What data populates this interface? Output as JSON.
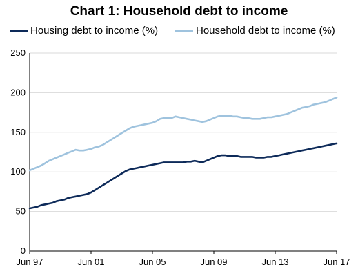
{
  "chart_data": {
    "type": "line",
    "title": "Chart 1: Household debt to income",
    "xlabel": "",
    "ylabel": "",
    "x_tick_labels": [
      "Jun 97",
      "Jun 01",
      "Jun 05",
      "Jun 09",
      "Jun 13",
      "Jun 17"
    ],
    "y_tick_labels": [
      "0",
      "50",
      "100",
      "150",
      "200",
      "250"
    ],
    "ylim": [
      0,
      250
    ],
    "xlim": [
      1997.5,
      2017.5
    ],
    "grid": "horizontal",
    "legend_position": "top",
    "series": [
      {
        "name": "Housing debt to income (%)",
        "color": "#0d2a59",
        "x": [
          1997.5,
          1997.75,
          1998.0,
          1998.25,
          1998.5,
          1998.75,
          1999.0,
          1999.25,
          1999.5,
          1999.75,
          2000.0,
          2000.25,
          2000.5,
          2000.75,
          2001.0,
          2001.25,
          2001.5,
          2001.75,
          2002.0,
          2002.25,
          2002.5,
          2002.75,
          2003.0,
          2003.25,
          2003.5,
          2003.75,
          2004.0,
          2004.25,
          2004.5,
          2004.75,
          2005.0,
          2005.25,
          2005.5,
          2005.75,
          2006.0,
          2006.25,
          2006.5,
          2006.75,
          2007.0,
          2007.25,
          2007.5,
          2007.75,
          2008.0,
          2008.25,
          2008.5,
          2008.75,
          2009.0,
          2009.25,
          2009.5,
          2009.75,
          2010.0,
          2010.25,
          2010.5,
          2010.75,
          2011.0,
          2011.25,
          2011.5,
          2011.75,
          2012.0,
          2012.25,
          2012.5,
          2012.75,
          2013.0,
          2013.25,
          2013.5,
          2013.75,
          2014.0,
          2014.25,
          2014.5,
          2014.75,
          2015.0,
          2015.25,
          2015.5,
          2015.75,
          2016.0,
          2016.25,
          2016.5,
          2016.75,
          2017.0,
          2017.25,
          2017.5
        ],
        "values": [
          54,
          55,
          56,
          58,
          59,
          60,
          61,
          63,
          64,
          65,
          67,
          68,
          69,
          70,
          71,
          72,
          74,
          77,
          80,
          83,
          86,
          89,
          92,
          95,
          98,
          101,
          103,
          104,
          105,
          106,
          107,
          108,
          109,
          110,
          111,
          112,
          112,
          112,
          112,
          112,
          112,
          113,
          113,
          114,
          113,
          112,
          114,
          116,
          118,
          120,
          121,
          121,
          120,
          120,
          120,
          119,
          119,
          119,
          119,
          118,
          118,
          118,
          119,
          119,
          120,
          121,
          122,
          123,
          124,
          125,
          126,
          127,
          128,
          129,
          130,
          131,
          132,
          133,
          134,
          135,
          136
        ]
      },
      {
        "name": "Household debt to income (%)",
        "color": "#9fc3de",
        "x": [
          1997.5,
          1997.75,
          1998.0,
          1998.25,
          1998.5,
          1998.75,
          1999.0,
          1999.25,
          1999.5,
          1999.75,
          2000.0,
          2000.25,
          2000.5,
          2000.75,
          2001.0,
          2001.25,
          2001.5,
          2001.75,
          2002.0,
          2002.25,
          2002.5,
          2002.75,
          2003.0,
          2003.25,
          2003.5,
          2003.75,
          2004.0,
          2004.25,
          2004.5,
          2004.75,
          2005.0,
          2005.25,
          2005.5,
          2005.75,
          2006.0,
          2006.25,
          2006.5,
          2006.75,
          2007.0,
          2007.25,
          2007.5,
          2007.75,
          2008.0,
          2008.25,
          2008.5,
          2008.75,
          2009.0,
          2009.25,
          2009.5,
          2009.75,
          2010.0,
          2010.25,
          2010.5,
          2010.75,
          2011.0,
          2011.25,
          2011.5,
          2011.75,
          2012.0,
          2012.25,
          2012.5,
          2012.75,
          2013.0,
          2013.25,
          2013.5,
          2013.75,
          2014.0,
          2014.25,
          2014.5,
          2014.75,
          2015.0,
          2015.25,
          2015.5,
          2015.75,
          2016.0,
          2016.25,
          2016.5,
          2016.75,
          2017.0,
          2017.25,
          2017.5
        ],
        "values": [
          102,
          104,
          106,
          108,
          111,
          114,
          116,
          118,
          120,
          122,
          124,
          126,
          128,
          127,
          127,
          128,
          129,
          131,
          132,
          134,
          137,
          140,
          143,
          146,
          149,
          152,
          155,
          157,
          158,
          159,
          160,
          161,
          162,
          164,
          167,
          168,
          168,
          168,
          170,
          169,
          168,
          167,
          166,
          165,
          164,
          163,
          164,
          166,
          168,
          170,
          171,
          171,
          171,
          170,
          170,
          169,
          168,
          168,
          167,
          167,
          167,
          168,
          169,
          169,
          170,
          171,
          172,
          173,
          175,
          177,
          179,
          181,
          182,
          183,
          185,
          186,
          187,
          188,
          190,
          192,
          194
        ]
      }
    ]
  }
}
